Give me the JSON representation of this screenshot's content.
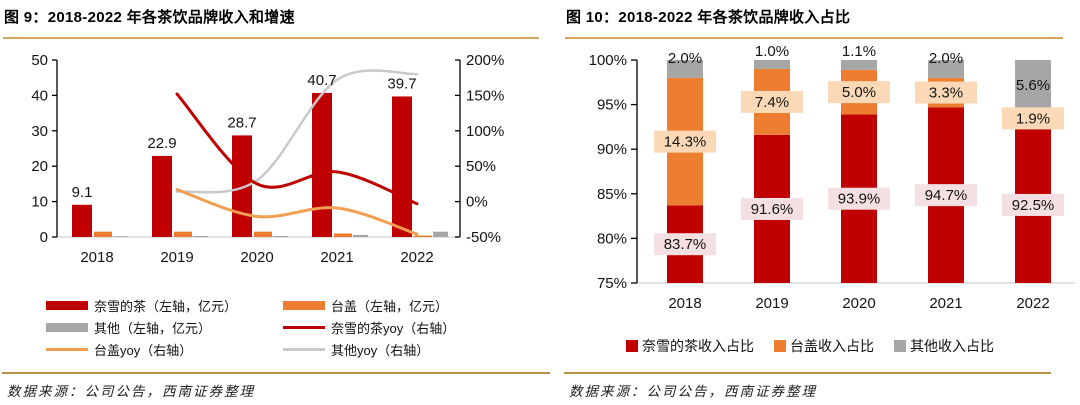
{
  "panels": {
    "left": {
      "title": "图 9：2018-2022 年各茶饮品牌收入和增速",
      "source": "数据来源：公司公告，西南证券整理",
      "legend": [
        {
          "label": "奈雪的茶（左轴，亿元）",
          "color": "#c00000",
          "type": "bar"
        },
        {
          "label": "台盖（左轴，亿元）",
          "color": "#ed7d31",
          "type": "bar"
        },
        {
          "label": "其他（左轴，亿元）",
          "color": "#a6a6a6",
          "type": "bar"
        },
        {
          "label": "奈雪的茶yoy（右轴）",
          "color": "#c00000",
          "type": "line"
        },
        {
          "label": "台盖yoy（右轴）",
          "color": "#f49e52",
          "type": "line"
        },
        {
          "label": "其他yoy（右轴）",
          "color": "#c9c9c9",
          "type": "line"
        }
      ]
    },
    "right": {
      "title": "图 10：2018-2022 年各茶饮品牌收入占比",
      "source": "数据来源：公司公告，西南证券整理",
      "legend": [
        {
          "label": "奈雪的茶收入占比",
          "color": "#c00000"
        },
        {
          "label": "台盖收入占比",
          "color": "#ed7d31"
        },
        {
          "label": "其他收入占比",
          "color": "#a6a6a6"
        }
      ]
    }
  },
  "chart_data": [
    {
      "type": "bar+line",
      "title": "2018-2022 年各茶饮品牌收入和增速",
      "categories": [
        "2018",
        "2019",
        "2020",
        "2021",
        "2022"
      ],
      "bar_series": [
        {
          "name": "奈雪的茶（左轴，亿元）",
          "axis": "left",
          "color": "#c00000",
          "values": [
            9.1,
            22.9,
            28.7,
            40.7,
            39.7
          ],
          "labels": [
            "9.1",
            "22.9",
            "28.7",
            "40.7",
            "39.7"
          ]
        },
        {
          "name": "台盖（左轴，亿元）",
          "axis": "left",
          "color": "#ed7d31",
          "values": [
            1.5,
            1.5,
            1.5,
            1.0,
            0.4
          ]
        },
        {
          "name": "其他（左轴，亿元）",
          "axis": "left",
          "color": "#a6a6a6",
          "values": [
            0.2,
            0.3,
            0.3,
            0.6,
            1.5
          ]
        }
      ],
      "line_series": [
        {
          "name": "其他yoy（右轴）",
          "axis": "right",
          "color": "#c9c9c9",
          "width": 2.5,
          "values": [
            null,
            14,
            30,
            172,
            180
          ]
        },
        {
          "name": "台盖yoy（右轴）",
          "axis": "right",
          "color": "#f49e52",
          "width": 3,
          "values": [
            null,
            17,
            -21,
            -9,
            -46
          ]
        },
        {
          "name": "奈雪的茶yoy（右轴）",
          "axis": "right",
          "color": "#c00000",
          "width": 3,
          "values": [
            null,
            152,
            25,
            42,
            -3
          ]
        }
      ],
      "left_axis": {
        "min": 0,
        "max": 50,
        "ticks": [
          0,
          10,
          20,
          30,
          40,
          50
        ],
        "tick_labels": [
          "0",
          "10",
          "20",
          "30",
          "40",
          "50"
        ]
      },
      "right_axis": {
        "min": -50,
        "max": 200,
        "ticks": [
          -50,
          0,
          50,
          100,
          150,
          200
        ],
        "tick_labels": [
          "-50%",
          "0%",
          "50%",
          "100%",
          "150%",
          "200%"
        ]
      },
      "grid": false,
      "legend_position": "bottom"
    },
    {
      "type": "stacked-bar",
      "title": "2018-2022 年各茶饮品牌收入占比",
      "categories": [
        "2018",
        "2019",
        "2020",
        "2021",
        "2022"
      ],
      "series": [
        {
          "name": "奈雪的茶收入占比",
          "color": "#c00000",
          "label_bg": "#f4dfe2",
          "values": [
            83.7,
            91.6,
            93.9,
            94.7,
            92.5
          ],
          "labels": [
            "83.7%",
            "91.6%",
            "93.9%",
            "94.7%",
            "92.5%"
          ]
        },
        {
          "name": "台盖收入占比",
          "color": "#ed7d31",
          "label_bg": "#fbd9b6",
          "values": [
            14.3,
            7.4,
            5.0,
            3.3,
            1.9
          ],
          "labels": [
            "14.3%",
            "7.4%",
            "5.0%",
            "3.3%",
            "1.9%"
          ]
        },
        {
          "name": "其他收入占比",
          "color": "#a6a6a6",
          "label_bg": null,
          "values": [
            2.0,
            1.0,
            1.1,
            2.0,
            5.6
          ],
          "labels": [
            "2.0%",
            "1.0%",
            "1.1%",
            "2.0%",
            "5.6%"
          ]
        }
      ],
      "y_axis": {
        "min": 75,
        "max": 100,
        "ticks": [
          75,
          80,
          85,
          90,
          95,
          100
        ],
        "tick_labels": [
          "75%",
          "80%",
          "85%",
          "90%",
          "95%",
          "100%"
        ]
      },
      "grid": false,
      "legend_position": "bottom"
    }
  ],
  "colors": {
    "bar_red": "#c00000",
    "bar_orange": "#ed7d31",
    "bar_gray": "#a6a6a6",
    "line_orange": "#f49e52",
    "line_gray": "#c9c9c9",
    "label_bg_pink": "#f4dfe2",
    "label_bg_peach": "#fbd9b6",
    "title_rule": "#d8a55f",
    "source_rule": "#bb8f47",
    "baseline": "#d9d9d9"
  }
}
